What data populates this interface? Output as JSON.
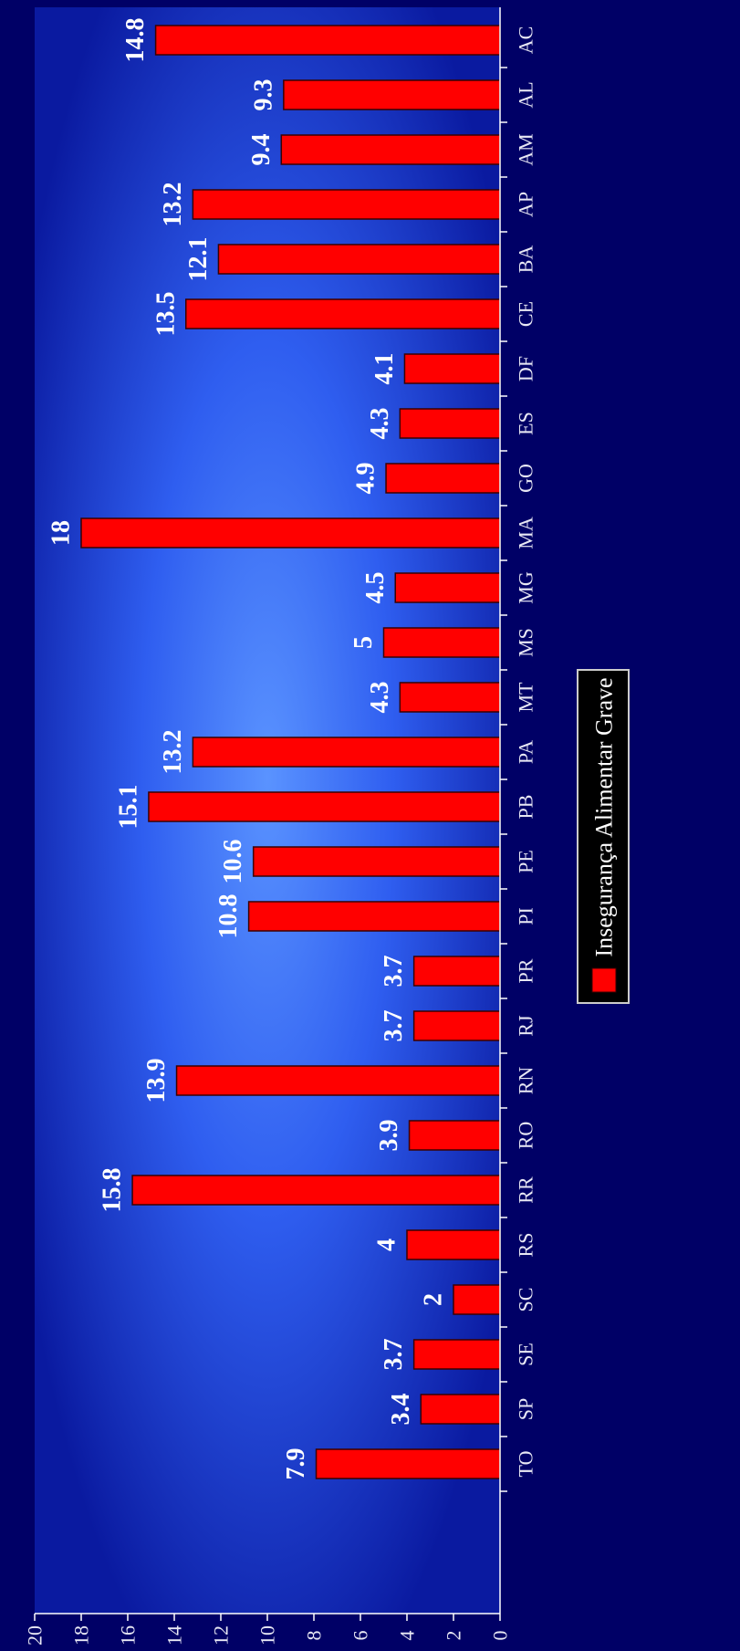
{
  "chart_data": {
    "type": "bar",
    "orientation": "rotated",
    "categories": [
      "AC",
      "AL",
      "AM",
      "AP",
      "BA",
      "CE",
      "DF",
      "ES",
      "GO",
      "MA",
      "MG",
      "MS",
      "MT",
      "PA",
      "PB",
      "PE",
      "PI",
      "PR",
      "RJ",
      "RN",
      "RO",
      "RR",
      "RS",
      "SC",
      "SE",
      "SP",
      "TO"
    ],
    "series": [
      {
        "name": "Insegurança Alimentar Grave",
        "values": [
          14.8,
          9.3,
          9.4,
          13.2,
          12.1,
          13.5,
          4.1,
          4.3,
          4.9,
          18,
          4.5,
          5,
          4.3,
          13.2,
          15.1,
          10.6,
          10.8,
          3.7,
          3.7,
          13.9,
          3.9,
          15.8,
          4,
          2,
          3.7,
          3.4,
          7.9
        ],
        "labels": [
          "14.8",
          "9.3",
          "9.4",
          "13.2",
          "12.1",
          "13.5",
          "4.1",
          "4.3",
          "4.9",
          "18",
          "4.5",
          "5",
          "4.3",
          "13.2",
          "15.1",
          "10.6",
          "10.8",
          "3.7",
          "3.7",
          "13.9",
          "3.9",
          "15.8",
          "4",
          "2",
          "3.7",
          "3.4",
          "7.9"
        ]
      }
    ],
    "ylim": [
      0,
      20
    ],
    "yticks": [
      "0",
      "2",
      "4",
      "6",
      "8",
      "10",
      "12",
      "14",
      "16",
      "18",
      "20"
    ],
    "grid": false,
    "legend_position": "bottom",
    "colors": {
      "bar": "#ff0000",
      "bar_outline": "#3a0000",
      "background_center": "#4d86ff",
      "background_edge": "#05148a",
      "frame": "#000066",
      "axis": "#ffffff",
      "legend_bg": "#000000"
    }
  }
}
